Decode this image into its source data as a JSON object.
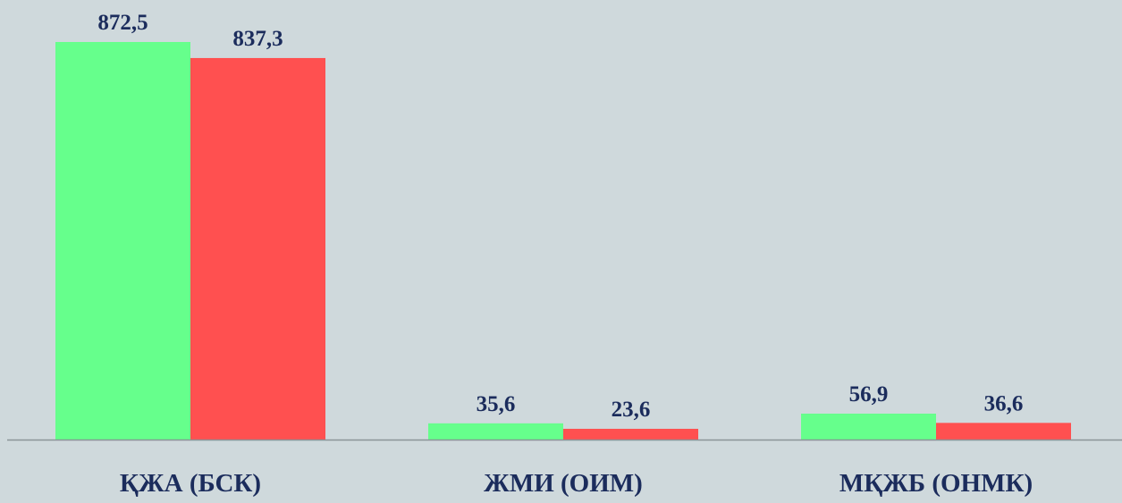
{
  "chart_data": {
    "type": "bar",
    "categories": [
      "ҚЖА (БСК)",
      "ЖМИ (ОИМ)",
      "МҚЖБ (ОНМК)"
    ],
    "series": [
      {
        "values": [
          872.5,
          35.6,
          56.9
        ],
        "labels": [
          "872,5",
          "35,6",
          "56,9"
        ],
        "color": "#66ff8c"
      },
      {
        "values": [
          837.3,
          23.6,
          36.6
        ],
        "labels": [
          "837,3",
          "23,6",
          "36,6"
        ],
        "color": "#ff5050"
      }
    ],
    "ylim": [
      0,
      900
    ],
    "grid": false,
    "legend": "none"
  },
  "colors": {
    "background": "#cfd9dc",
    "label_text": "#1b2c5c",
    "axis_line": "#8a9498"
  }
}
